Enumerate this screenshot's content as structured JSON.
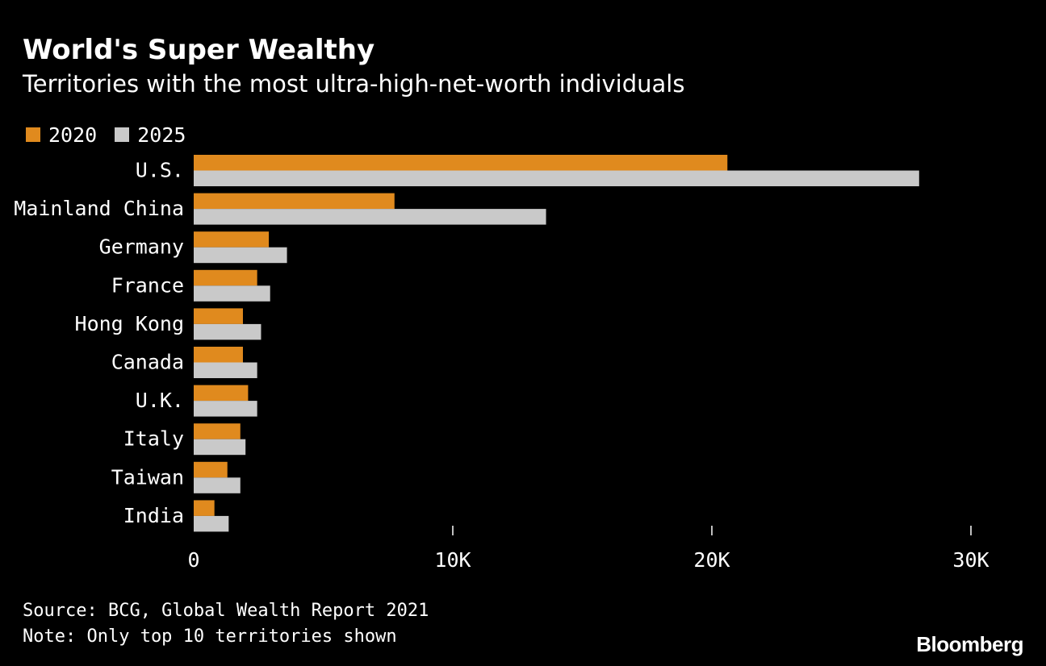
{
  "colors": {
    "background": "#000000",
    "text": "#ffffff",
    "series_2020": "#E08A1E",
    "series_2025": "#C9C9C9",
    "axis": "#ffffff"
  },
  "chart_data": {
    "type": "bar",
    "orientation": "horizontal",
    "title": "World's Super Wealthy",
    "subtitle": "Territories with the most ultra-high-net-worth individuals",
    "categories": [
      "U.S.",
      "Mainland China",
      "Germany",
      "France",
      "Hong Kong",
      "Canada",
      "U.K.",
      "Italy",
      "Taiwan",
      "India"
    ],
    "series": [
      {
        "name": "2020",
        "color": "#E08A1E",
        "values": [
          20600,
          7750,
          2900,
          2450,
          1900,
          1900,
          2100,
          1800,
          1300,
          800
        ]
      },
      {
        "name": "2025",
        "color": "#C9C9C9",
        "values": [
          28000,
          13600,
          3600,
          2950,
          2600,
          2450,
          2450,
          2000,
          1800,
          1350
        ]
      }
    ],
    "xlim": [
      0,
      30000
    ],
    "xticks": [
      {
        "value": 0,
        "label": "0"
      },
      {
        "value": 10000,
        "label": "10K"
      },
      {
        "value": 20000,
        "label": "20K"
      },
      {
        "value": 30000,
        "label": "30K"
      }
    ],
    "legend_position": "top-left",
    "xlabel": "",
    "ylabel": ""
  },
  "footer": {
    "source": "Source: BCG, Global Wealth Report 2021",
    "note": "Note: Only top 10 territories shown",
    "brand": "Bloomberg"
  }
}
